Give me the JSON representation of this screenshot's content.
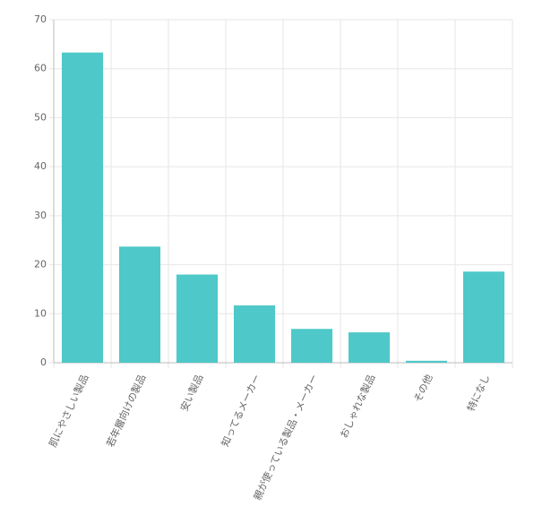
{
  "chart_data": {
    "type": "bar",
    "categories": [
      "肌にやさしい製品",
      "若年層向けの製品",
      "安い製品",
      "知ってるメーカー",
      "親が使っている製品・メーカー",
      "おしゃれな製品",
      "その他",
      "特になし"
    ],
    "values": [
      63.3,
      23.7,
      18.0,
      11.7,
      6.9,
      6.2,
      0.4,
      18.6
    ],
    "color": "#4fc8c9",
    "ylim": [
      0,
      70
    ],
    "yticks": [
      0,
      10,
      20,
      30,
      40,
      50,
      60,
      70
    ],
    "grid": true
  }
}
